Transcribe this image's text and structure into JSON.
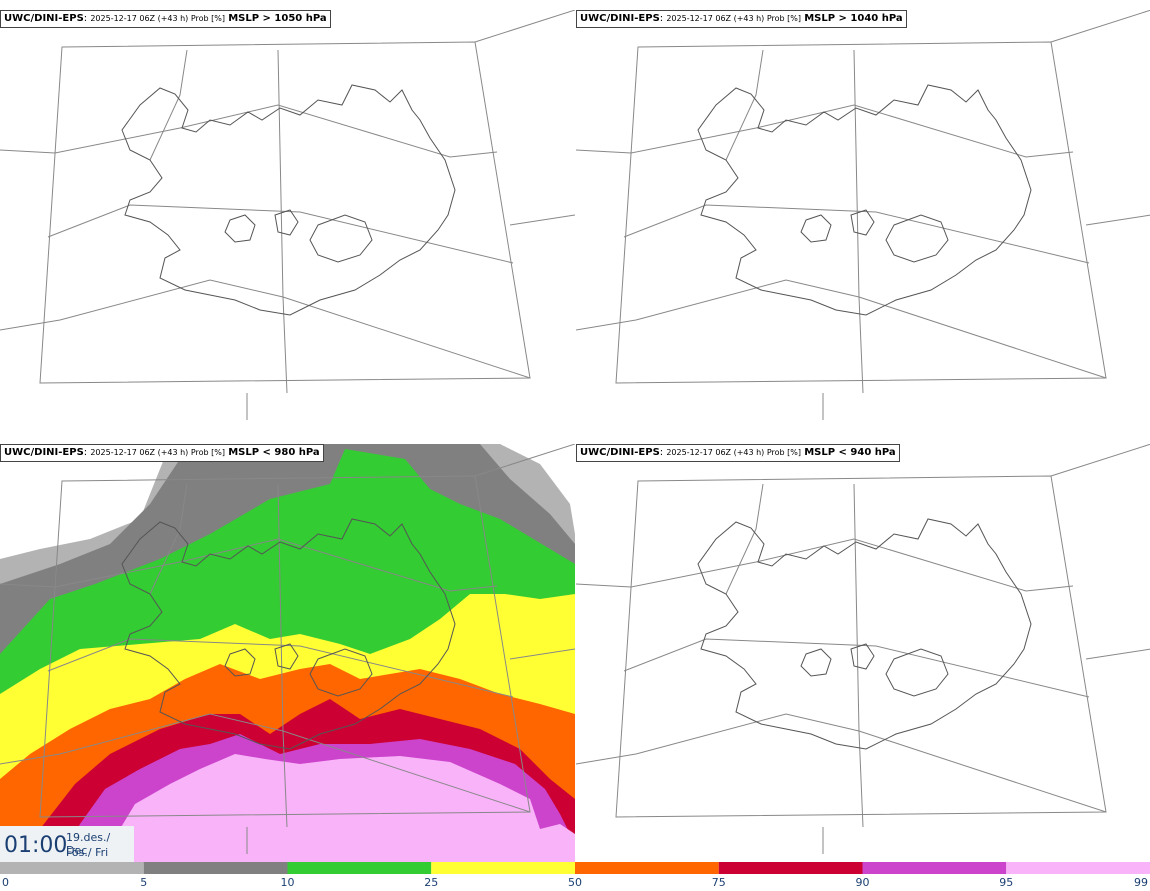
{
  "panels": [
    {
      "model": "UWC/DINI-EPS",
      "run_info": "2025-12-17 06Z (+43 h) Prob [%]",
      "variable": "MSLP > 1050 hPa"
    },
    {
      "model": "UWC/DINI-EPS",
      "run_info": "2025-12-17 06Z (+43 h) Prob [%]",
      "variable": "MSLP > 1040 hPa"
    },
    {
      "model": "UWC/DINI-EPS",
      "run_info": "2025-12-17 06Z (+43 h) Prob [%]",
      "variable": "MSLP < 980 hPa"
    },
    {
      "model": "UWC/DINI-EPS",
      "run_info": "2025-12-17 06Z (+43 h) Prob [%]",
      "variable": "MSLP < 940 hPa"
    }
  ],
  "valid_time": {
    "time": "01:00",
    "date": "19.des./ Dec",
    "weekday": "Fös./ Fri"
  },
  "colorbar": {
    "ticks": [
      "0",
      "5",
      "10",
      "25",
      "50",
      "75",
      "90",
      "95",
      "99"
    ],
    "colors": [
      "#ffffff",
      "#b3b3b3",
      "#808080",
      "#33cc33",
      "#ffff33",
      "#ff6600",
      "#cc0033",
      "#cc44cc",
      "#f9b3f9"
    ]
  }
}
